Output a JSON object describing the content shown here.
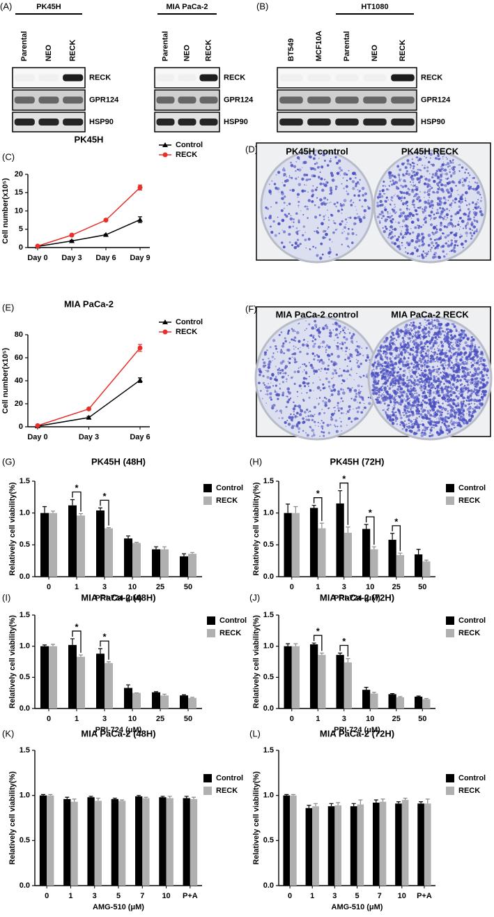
{
  "blots": [
    {
      "panel": "(A)",
      "groups": [
        {
          "name": "PK45H",
          "lanes": [
            "Parental",
            "NEO",
            "RECK"
          ]
        },
        {
          "name": "MIA PaCa-2",
          "lanes": [
            "Parental",
            "NEO",
            "RECK"
          ]
        }
      ],
      "rows": [
        "RECK",
        "GPR124",
        "HSP90"
      ]
    },
    {
      "panel": "(B)",
      "groups": [
        {
          "name": null,
          "lanes": [
            "BT549",
            "MCF10A"
          ]
        },
        {
          "name": "HT1080",
          "lanes": [
            "Parental",
            "NEO",
            "RECK"
          ]
        }
      ],
      "rows": [
        "RECK",
        "GPR124",
        "HSP90"
      ]
    }
  ],
  "dishes": [
    {
      "panel": "(D)",
      "captions": [
        "PK45H control",
        "PK45H RECK"
      ]
    },
    {
      "panel": "(F)",
      "captions": [
        "MIA PaCa-2 control",
        "MIA PaCa-2 RECK"
      ]
    }
  ],
  "chart_data": [
    {
      "type": "line",
      "panel": "(C)",
      "title": "PK45H",
      "y_label": "Cell number(x10⁵)",
      "categories": [
        "Day 0",
        "Day 3",
        "Day 6",
        "Day 9"
      ],
      "series": [
        {
          "name": "Control",
          "color": "#000000",
          "marker": "triangle",
          "values": [
            0.3,
            1.8,
            3.5,
            7.6
          ],
          "errors": [
            0.1,
            0.2,
            0.2,
            0.8
          ]
        },
        {
          "name": "RECK",
          "color": "#e8302a",
          "marker": "circle",
          "values": [
            0.4,
            3.4,
            7.5,
            16.4
          ],
          "errors": [
            0.1,
            0.2,
            0.2,
            0.7
          ]
        }
      ],
      "ylim": [
        0,
        20
      ],
      "yticks": [
        0,
        5,
        10,
        15,
        20
      ],
      "legend": "upper right"
    },
    {
      "type": "line",
      "panel": "(E)",
      "title": "MIA PaCa-2",
      "y_label": "Cell number(x10⁵)",
      "categories": [
        "Day 0",
        "Day 3",
        "Day 6"
      ],
      "series": [
        {
          "name": "Control",
          "color": "#000000",
          "marker": "triangle",
          "values": [
            0.5,
            8,
            40.5
          ],
          "errors": [
            0.3,
            1,
            2
          ]
        },
        {
          "name": "RECK",
          "color": "#e8302a",
          "marker": "circle",
          "values": [
            1,
            15.5,
            68.5
          ],
          "errors": [
            0.3,
            1,
            3
          ]
        }
      ],
      "ylim": [
        0,
        80
      ],
      "yticks": [
        0,
        20,
        40,
        60,
        80
      ],
      "legend": "upper right"
    },
    {
      "type": "bar",
      "panel": "(G)",
      "title": "PK45H (48H)",
      "x_label": "PRI-724 (μM)",
      "y_label": "Relatively cell viability(%)",
      "categories": [
        "0",
        "1",
        "3",
        "10",
        "25",
        "50"
      ],
      "series": [
        {
          "name": "Control",
          "color": "#000000",
          "values": [
            1.0,
            1.12,
            1.04,
            0.6,
            0.43,
            0.32
          ],
          "errors": [
            0.1,
            0.09,
            0.04,
            0.04,
            0.04,
            0.04
          ]
        },
        {
          "name": "RECK",
          "color": "#b0b0b0",
          "values": [
            1.0,
            0.96,
            0.76,
            0.53,
            0.43,
            0.36
          ],
          "errors": [
            0.03,
            0.03,
            0.01,
            0.01,
            0.04,
            0.02
          ]
        }
      ],
      "ylim": [
        0,
        1.5
      ],
      "yticks": [
        {
          "value": 0,
          "label": "0.0"
        },
        0.5,
        {
          "value": 1,
          "label": "1.0"
        },
        1.5
      ],
      "annotations": [
        {
          "category": "1",
          "text": "*"
        },
        {
          "category": "3",
          "text": "*"
        }
      ],
      "legend": "right"
    },
    {
      "type": "bar",
      "panel": "(H)",
      "title": "PK45H (72H)",
      "x_label": "PRI-724 (μM)",
      "y_label": "Relatively cell viability(%)",
      "categories": [
        "0",
        "1",
        "3",
        "10",
        "25",
        "50"
      ],
      "series": [
        {
          "name": "Control",
          "color": "#000000",
          "values": [
            1.0,
            1.08,
            1.15,
            0.75,
            0.58,
            0.35
          ],
          "errors": [
            0.14,
            0.04,
            0.2,
            0.07,
            0.1,
            0.08
          ]
        },
        {
          "name": "RECK",
          "color": "#b0b0b0",
          "values": [
            1.0,
            0.76,
            0.69,
            0.43,
            0.34,
            0.24
          ],
          "errors": [
            0.1,
            0.08,
            0.09,
            0.04,
            0.03,
            0.02
          ]
        }
      ],
      "ylim": [
        0,
        1.5
      ],
      "yticks": [
        {
          "value": 0,
          "label": "0.0"
        },
        0.5,
        {
          "value": 1,
          "label": "1.0"
        },
        1.5
      ],
      "annotations": [
        {
          "category": "1",
          "text": "*"
        },
        {
          "category": "3",
          "text": "*"
        },
        {
          "category": "10",
          "text": "*"
        },
        {
          "category": "25",
          "text": "*"
        }
      ],
      "legend": "right"
    },
    {
      "type": "bar",
      "panel": "(I)",
      "title": "MIA PaCa-2 (48H)",
      "x_label": "PRI-724 (μM)",
      "y_label": "Relatively cell viability(%)",
      "categories": [
        "0",
        "1",
        "3",
        "10",
        "25",
        "50"
      ],
      "series": [
        {
          "name": "Control",
          "color": "#000000",
          "values": [
            1.0,
            1.02,
            0.88,
            0.33,
            0.26,
            0.21
          ],
          "errors": [
            0.02,
            0.1,
            0.08,
            0.05,
            0.01,
            0.01
          ]
        },
        {
          "name": "RECK",
          "color": "#b0b0b0",
          "values": [
            1.0,
            0.83,
            0.73,
            0.25,
            0.21,
            0.17
          ],
          "errors": [
            0.03,
            0.03,
            0.02,
            0,
            0.02,
            0.01
          ]
        }
      ],
      "ylim": [
        0,
        1.5
      ],
      "yticks": [
        {
          "value": 0,
          "label": "0.0"
        },
        0.5,
        {
          "value": 1,
          "label": "1.0"
        },
        1.5
      ],
      "annotations": [
        {
          "category": "1",
          "text": "*"
        },
        {
          "category": "3",
          "text": "*"
        }
      ],
      "legend": "right"
    },
    {
      "type": "bar",
      "panel": "(J)",
      "title": "MIA PaCa-2 (72H)",
      "x_label": "PRI-724 (μM)",
      "y_label": "Relatively cell viability(%)",
      "categories": [
        "0",
        "1",
        "3",
        "10",
        "25",
        "50"
      ],
      "series": [
        {
          "name": "Control",
          "color": "#000000",
          "values": [
            1.0,
            1.03,
            0.86,
            0.3,
            0.23,
            0.19
          ],
          "errors": [
            0.04,
            0.02,
            0.03,
            0.04,
            0.01,
            0.01
          ]
        },
        {
          "name": "RECK",
          "color": "#b0b0b0",
          "values": [
            1.0,
            0.86,
            0.74,
            0.24,
            0.18,
            0.15
          ],
          "errors": [
            0.04,
            0.03,
            0.06,
            0.02,
            0.01,
            0.01
          ]
        }
      ],
      "ylim": [
        0,
        1.5
      ],
      "yticks": [
        {
          "value": 0,
          "label": "0.0"
        },
        0.5,
        {
          "value": 1,
          "label": "1.0"
        },
        1.5
      ],
      "annotations": [
        {
          "category": "1",
          "text": "*"
        },
        {
          "category": "3",
          "text": "*"
        }
      ],
      "legend": "right"
    },
    {
      "type": "bar",
      "panel": "(K)",
      "title": "MIA PaCa-2 (48H)",
      "x_label": "AMG-510 (μM)",
      "y_label": "Relatively cell viability(%)",
      "categories": [
        "0",
        "1",
        "3",
        "5",
        "7",
        "10",
        "P+A"
      ],
      "series": [
        {
          "name": "Control",
          "color": "#000000",
          "values": [
            1.0,
            0.96,
            0.98,
            0.96,
            0.99,
            0.98,
            0.97
          ],
          "errors": [
            0.01,
            0.02,
            0.01,
            0.01,
            0.01,
            0.01,
            0.02
          ]
        },
        {
          "name": "RECK",
          "color": "#b0b0b0",
          "values": [
            1.0,
            0.93,
            0.94,
            0.94,
            0.97,
            0.97,
            0.96
          ],
          "errors": [
            0.01,
            0.03,
            0.03,
            0.01,
            0.01,
            0.02,
            0.02
          ]
        }
      ],
      "ylim": [
        0,
        1.5
      ],
      "yticks": [
        {
          "value": 0,
          "label": "0.0"
        },
        0.5,
        {
          "value": 1,
          "label": "1.0"
        },
        1.5
      ],
      "legend": "right"
    },
    {
      "type": "bar",
      "panel": "(L)",
      "title": "MIA PaCa-2 (72H)",
      "x_label": "AMG-510 (μM)",
      "y_label": "Relatively cell viability(%)",
      "categories": [
        "0",
        "1",
        "3",
        "5",
        "7",
        "10",
        "P+A"
      ],
      "series": [
        {
          "name": "Control",
          "color": "#000000",
          "values": [
            1.0,
            0.86,
            0.88,
            0.88,
            0.92,
            0.91,
            0.91
          ],
          "errors": [
            0.01,
            0.03,
            0.03,
            0.03,
            0.03,
            0.02,
            0.02
          ]
        },
        {
          "name": "RECK",
          "color": "#b0b0b0",
          "values": [
            1.0,
            0.88,
            0.89,
            0.9,
            0.93,
            0.95,
            0.91
          ],
          "errors": [
            0.01,
            0.03,
            0.03,
            0.05,
            0.03,
            0.02,
            0.05
          ]
        }
      ],
      "ylim": [
        0,
        1.5
      ],
      "yticks": [
        {
          "value": 0,
          "label": "0.0"
        },
        0.5,
        {
          "value": 1,
          "label": "1.0"
        },
        1.5
      ],
      "legend": "right"
    }
  ]
}
